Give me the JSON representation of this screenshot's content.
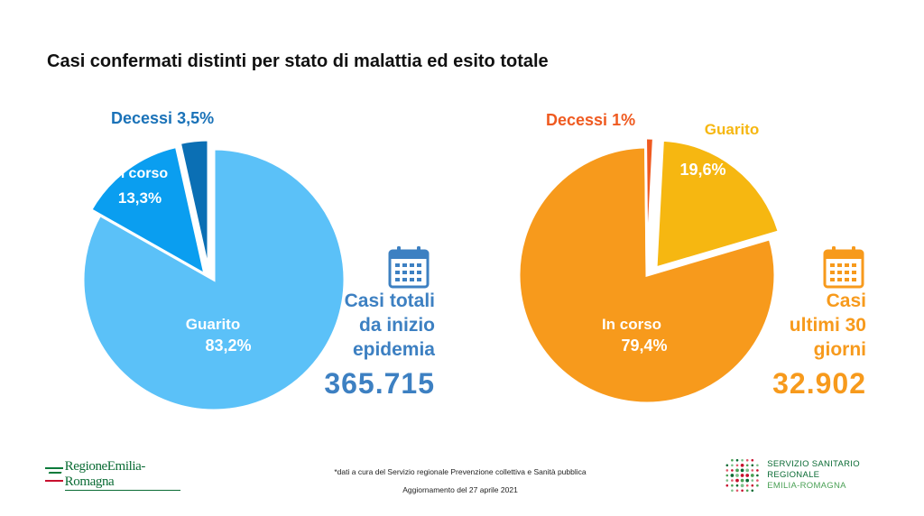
{
  "title": "Casi confermati distinti per stato di malattia ed esito totale",
  "chart_data": [
    {
      "type": "pie",
      "slices": [
        {
          "label": "Guarito",
          "value": 83.2,
          "value_label": "83,2%",
          "color": "#5bc1f8"
        },
        {
          "label": "In corso",
          "value": 13.3,
          "value_label": "13,3%",
          "color": "#0a9ef0"
        },
        {
          "label": "Decessi",
          "value": 3.5,
          "value_label": "3,5%",
          "color": "#0b6fb4"
        }
      ],
      "total_caption": [
        "Casi totali",
        "da inizio",
        "epidemia"
      ],
      "total_value": "365.715",
      "accent_color": "#3d80c2"
    },
    {
      "type": "pie",
      "slices": [
        {
          "label": "Guarito",
          "value": 19.6,
          "value_label": "19,6%",
          "color": "#f6b711"
        },
        {
          "label": "In corso",
          "value": 79.4,
          "value_label": "79,4%",
          "color": "#f79a1c"
        },
        {
          "label": "Decessi",
          "value": 1.0,
          "value_label": "1%",
          "color": "#ef5a20"
        }
      ],
      "total_caption": [
        "Casi",
        "ultimi 30",
        "giorni"
      ],
      "total_value": "32.902",
      "accent_color": "#f79a1c"
    }
  ],
  "icons": {
    "calendar": "calendar-icon"
  },
  "footer": {
    "logo_left": "RegioneEmilia-Romagna",
    "note": "*dati a cura del Servizio regionale Prevenzione collettiva e Sanità pubblica",
    "updated": "Aggiornamento del 27 aprile 2021",
    "logo_right_line1": "SERVIZIO SANITARIO REGIONALE",
    "logo_right_line2": "EMILIA-ROMAGNA"
  }
}
